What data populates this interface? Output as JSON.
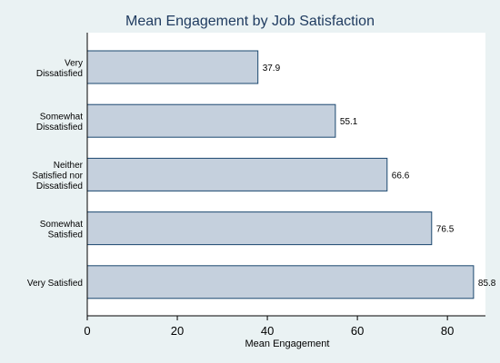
{
  "chart_data": {
    "type": "bar",
    "orientation": "horizontal",
    "title": "Mean Engagement by Job Satisfaction",
    "xlabel": "Mean Engagement",
    "ylabel": "",
    "categories": [
      [
        "Very",
        "Dissatisfied"
      ],
      [
        "Somewhat",
        "Dissatisfied"
      ],
      [
        "Neither",
        "Satisfied nor",
        "Dissatisfied"
      ],
      [
        "Somewhat",
        "Satisfied"
      ],
      [
        "Very Satisfied"
      ]
    ],
    "values": [
      37.9,
      55.1,
      66.6,
      76.5,
      85.8
    ],
    "value_labels": [
      "37.9",
      "55.1",
      "66.6",
      "76.5",
      "85.8"
    ],
    "xlim": [
      0,
      88
    ],
    "xticks": [
      0,
      20,
      40,
      60,
      80
    ],
    "grid": false,
    "colors": {
      "background": "#eaf2f3",
      "plot_background": "#ffffff",
      "bar_fill": "#c5d0dd",
      "bar_stroke": "#1a476f",
      "title": "#1e3a5f"
    }
  }
}
